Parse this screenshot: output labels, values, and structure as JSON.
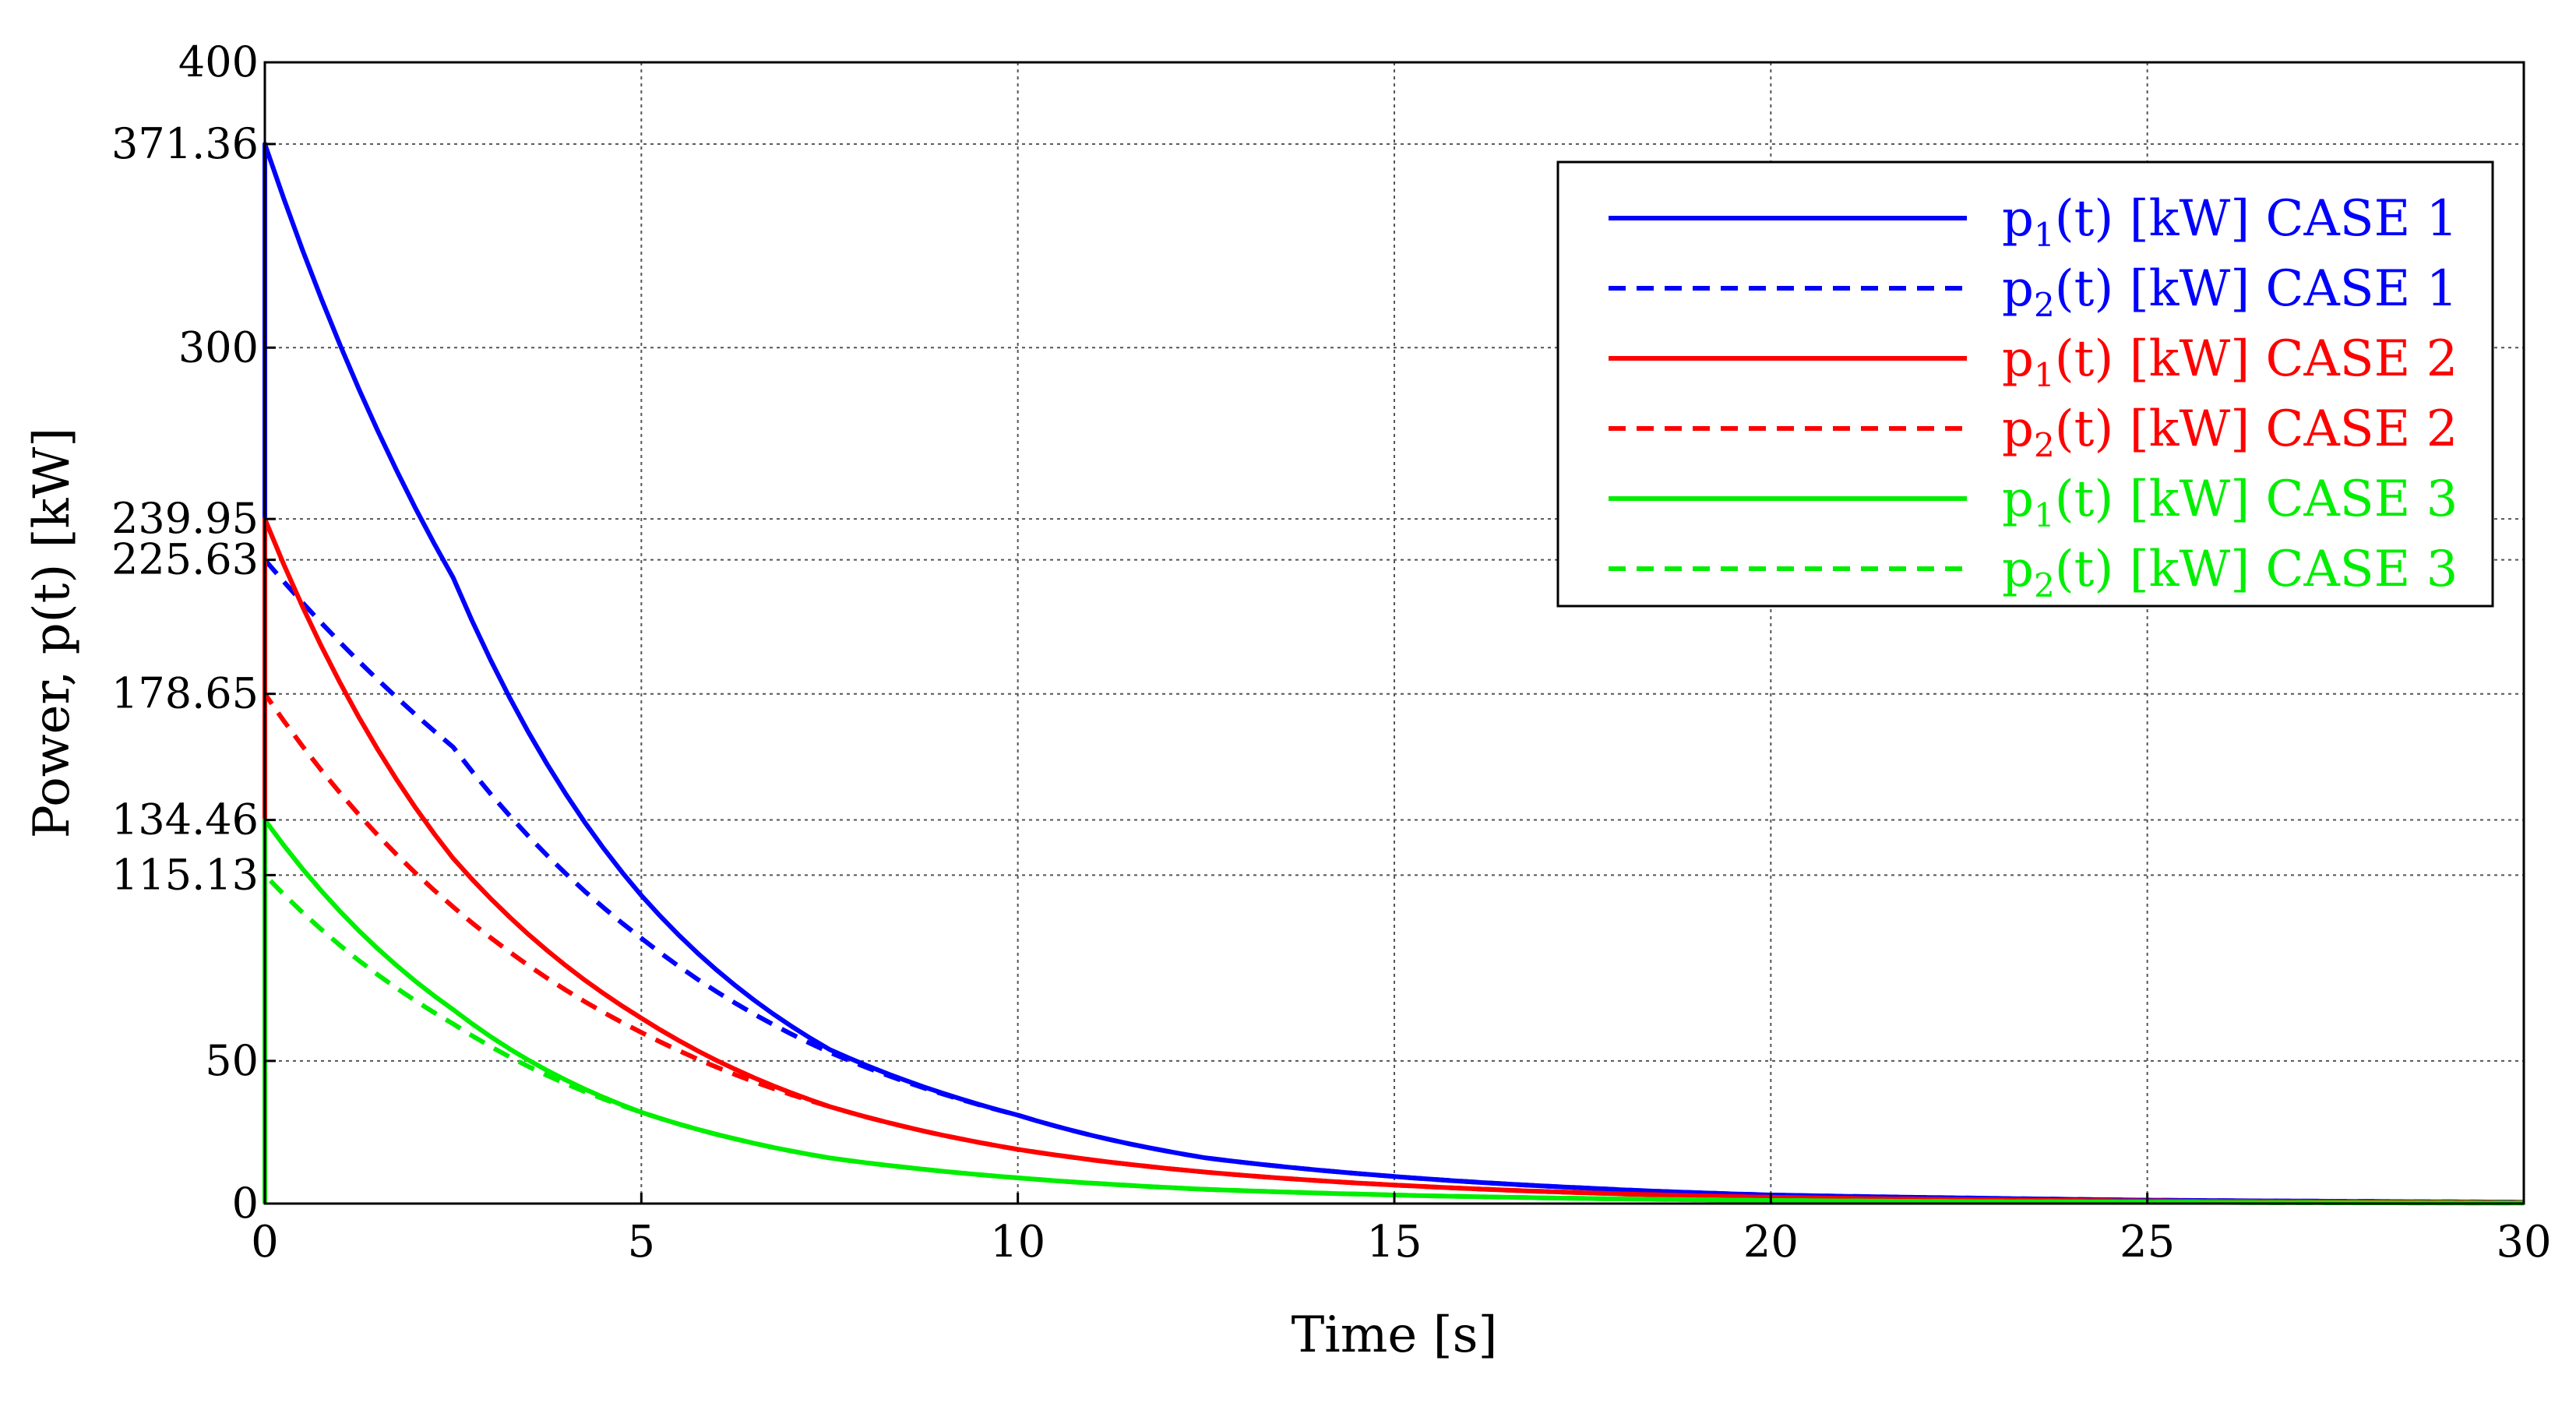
{
  "chart_data": {
    "type": "line",
    "title": "",
    "xlabel": "Time [s]",
    "ylabel": "Power, p(t) [kW]",
    "xlim": [
      0,
      30
    ],
    "ylim": [
      0,
      400
    ],
    "grid": true,
    "legend_position": "top-right",
    "x_ticks": [
      0,
      5,
      10,
      15,
      20,
      25,
      30
    ],
    "x_tick_labels": [
      "0",
      "5",
      "10",
      "15",
      "20",
      "25",
      "30"
    ],
    "y_ticks": [
      0,
      50,
      115.13,
      134.46,
      178.65,
      225.63,
      239.95,
      300,
      371.36,
      400
    ],
    "y_tick_labels": [
      "0",
      "50",
      "115.13",
      "134.46",
      "178.65",
      "225.63",
      "239.95",
      "300",
      "371.36",
      "400"
    ],
    "x": [
      0,
      2.5,
      5,
      7.5,
      10,
      12.5,
      15,
      17.5,
      20,
      22.5,
      25,
      27.5,
      30
    ],
    "series": [
      {
        "name": "p1(t) [kW] CASE 1",
        "base": "p",
        "sub": "1",
        "suffix": "(t) [kW] CASE 1",
        "color": "#0000ff",
        "dashed": false,
        "values": [
          371.36,
          219.4,
          108,
          54,
          31,
          16,
          9.5,
          5.5,
          3,
          2,
          1.2,
          0.8,
          0.5
        ]
      },
      {
        "name": "p2(t) [kW] CASE 1",
        "base": "p",
        "sub": "2",
        "suffix": "(t) [kW] CASE 1",
        "color": "#0000ff",
        "dashed": true,
        "values": [
          225.63,
          160,
          93,
          53,
          31,
          16,
          9.5,
          5.5,
          3,
          2,
          1.2,
          0.8,
          0.5
        ]
      },
      {
        "name": "p1(t) [kW] CASE 2",
        "base": "p",
        "sub": "1",
        "suffix": "(t) [kW] CASE 2",
        "color": "#ff0000",
        "dashed": false,
        "values": [
          239.95,
          121,
          65,
          34,
          19,
          11,
          6.5,
          3.8,
          2.2,
          1.4,
          0.9,
          0.6,
          0.4
        ]
      },
      {
        "name": "p2(t) [kW] CASE 2",
        "base": "p",
        "sub": "2",
        "suffix": "(t) [kW] CASE 2",
        "color": "#ff0000",
        "dashed": true,
        "values": [
          178.65,
          104,
          60,
          34,
          19,
          11,
          6.5,
          3.8,
          2.2,
          1.4,
          0.9,
          0.6,
          0.4
        ]
      },
      {
        "name": "p1(t) [kW] CASE 3",
        "base": "p",
        "sub": "1",
        "suffix": "(t) [kW] CASE 3",
        "color": "#00ee00",
        "dashed": false,
        "values": [
          134.46,
          68,
          32,
          16,
          9,
          5,
          3,
          1.8,
          1.1,
          0.7,
          0.5,
          0.3,
          0.2
        ]
      },
      {
        "name": "p2(t) [kW] CASE 3",
        "base": "p",
        "sub": "2",
        "suffix": "(t) [kW] CASE 3",
        "color": "#00ee00",
        "dashed": true,
        "values": [
          115.13,
          63,
          32,
          16,
          9,
          5,
          3,
          1.8,
          1.1,
          0.7,
          0.5,
          0.3,
          0.2
        ]
      }
    ]
  }
}
